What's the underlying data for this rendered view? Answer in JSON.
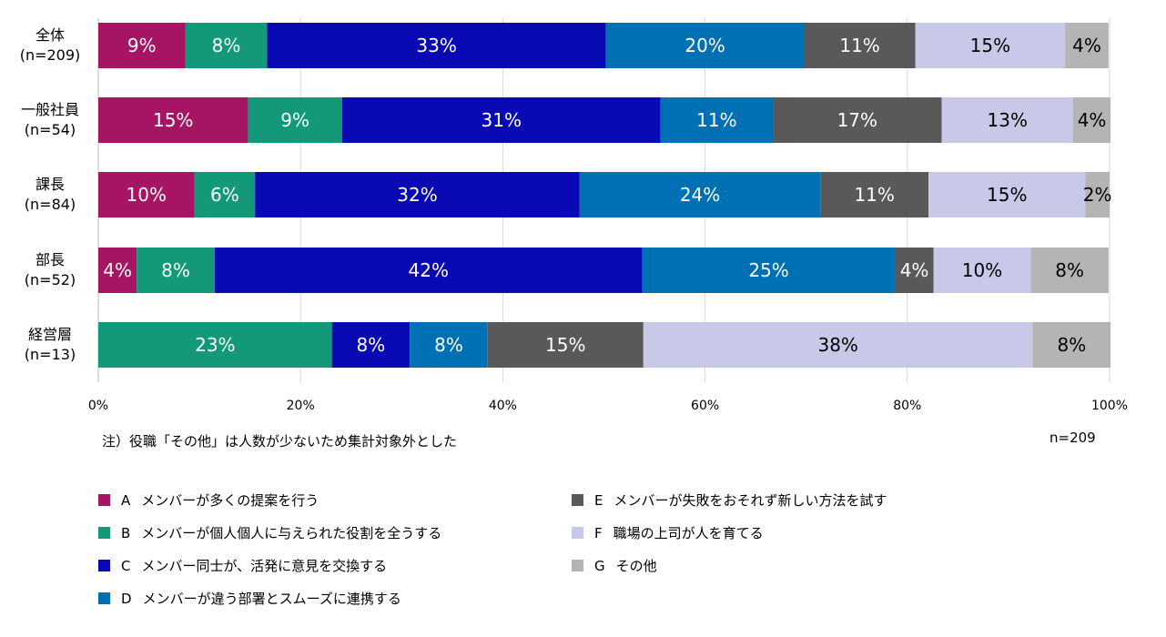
{
  "chart_data": {
    "type": "bar",
    "orientation": "horizontal",
    "stacked": true,
    "categories": [
      "全体",
      "一般社員",
      "課長",
      "部長",
      "経営層"
    ],
    "category_n": [
      "(n=209)",
      "(n=54)",
      "(n=84)",
      "(n=52)",
      "(n=13)"
    ],
    "xlim": [
      0,
      100
    ],
    "xticks": [
      "0%",
      "20%",
      "40%",
      "60%",
      "80%",
      "100%"
    ],
    "grid": true,
    "series": [
      {
        "key": "A",
        "name": "メンバーが多くの提案を行う",
        "color": "#A51563",
        "values": [
          8.6,
          14.8,
          9.5,
          3.8,
          0
        ],
        "labels": [
          "9%",
          "15%",
          "10%",
          "4%",
          ""
        ]
      },
      {
        "key": "B",
        "name": "メンバーが個人個人に与えられた役割を全うする",
        "color": "#13997A",
        "values": [
          8.1,
          9.3,
          6.0,
          7.7,
          23.1
        ],
        "labels": [
          "8%",
          "9%",
          "6%",
          "8%",
          "23%"
        ]
      },
      {
        "key": "C",
        "name": "メンバー同士が、活発に意見を交換する",
        "color": "#0A0AB5",
        "values": [
          33.5,
          31.5,
          32.1,
          42.3,
          7.7
        ],
        "labels": [
          "33%",
          "31%",
          "32%",
          "42%",
          "8%"
        ]
      },
      {
        "key": "D",
        "name": "メンバーが違う部署とスムーズに連携する",
        "color": "#0070B5",
        "values": [
          19.6,
          11.1,
          23.8,
          25.0,
          7.7
        ],
        "labels": [
          "20%",
          "11%",
          "24%",
          "25%",
          "8%"
        ]
      },
      {
        "key": "E",
        "name": "メンバーが失敗をおそれず新しい方法を試す",
        "color": "#595959",
        "values": [
          11.0,
          16.7,
          10.7,
          3.8,
          15.4
        ],
        "labels": [
          "11%",
          "17%",
          "11%",
          "4%",
          "15%"
        ]
      },
      {
        "key": "F",
        "name": "職場の上司が人を育てる",
        "color": "#C8C8E8",
        "values": [
          14.8,
          13.0,
          15.5,
          9.6,
          38.5
        ],
        "labels": [
          "15%",
          "13%",
          "15%",
          "10%",
          "38%"
        ]
      },
      {
        "key": "G",
        "name": "その他",
        "color": "#B4B4B4",
        "values": [
          4.3,
          3.7,
          2.4,
          7.7,
          7.7
        ],
        "labels": [
          "4%",
          "4%",
          "2%",
          "8%",
          "8%"
        ]
      }
    ],
    "note": "注）役職「その他」は人数が少ないため集計対象外とした",
    "n_label": "n=209"
  }
}
